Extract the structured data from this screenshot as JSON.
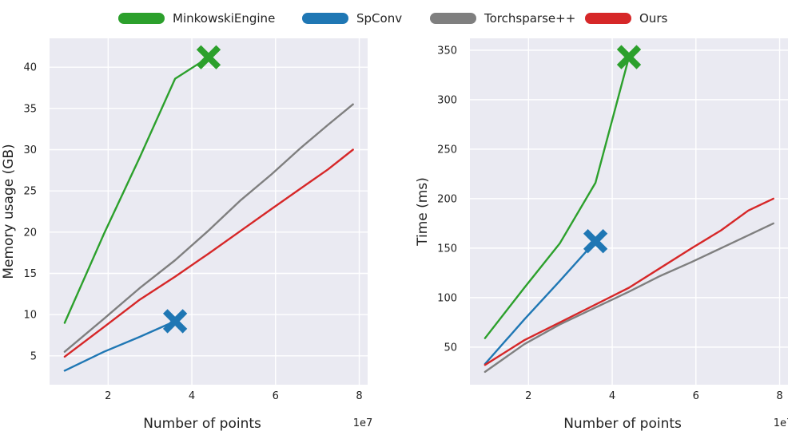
{
  "legend": [
    {
      "label": "MinkowskiEngine",
      "color": "#2ca02c"
    },
    {
      "label": "SpConv",
      "color": "#1f77b4"
    },
    {
      "label": "Torchsparse++",
      "color": "#7f7f7f"
    },
    {
      "label": "Ours",
      "color": "#d62728"
    }
  ],
  "chart_data": [
    {
      "type": "line",
      "title": "",
      "xlabel": "Number of points",
      "ylabel": "Memory usage (GB)",
      "x_offset_text": "1e7",
      "xlim": [
        0.6,
        8.2
      ],
      "ylim": [
        1.5,
        43.5
      ],
      "xticks": [
        2,
        4,
        6,
        8
      ],
      "yticks": [
        5,
        10,
        15,
        20,
        25,
        30,
        35,
        40
      ],
      "grid": true,
      "series": [
        {
          "name": "MinkowskiEngine",
          "color": "#2ca02c",
          "x": [
            0.96,
            1.9,
            2.75,
            3.6,
            4.4
          ],
          "y": [
            9,
            19.8,
            29,
            38.6,
            41.2
          ],
          "end_marker": "X"
        },
        {
          "name": "SpConv",
          "color": "#1f77b4",
          "x": [
            0.96,
            1.9,
            2.75,
            3.6
          ],
          "y": [
            3.2,
            5.5,
            7.3,
            9.2
          ],
          "end_marker": "X"
        },
        {
          "name": "Torchsparse++",
          "color": "#7f7f7f",
          "x": [
            0.96,
            1.9,
            2.75,
            3.6,
            4.4,
            5.15,
            5.9,
            6.6,
            7.25,
            7.85
          ],
          "y": [
            5.5,
            9.5,
            13.2,
            16.6,
            20.2,
            23.8,
            27,
            30.2,
            33,
            35.5
          ]
        },
        {
          "name": "Ours",
          "color": "#d62728",
          "x": [
            0.96,
            1.9,
            2.75,
            3.6,
            4.4,
            5.15,
            5.9,
            6.6,
            7.25,
            7.85
          ],
          "y": [
            4.9,
            8.5,
            11.8,
            14.6,
            17.4,
            20.1,
            22.8,
            25.3,
            27.6,
            30
          ]
        }
      ]
    },
    {
      "type": "line",
      "title": "",
      "xlabel": "Number of points",
      "ylabel": "Time (ms)",
      "x_offset_text": "1e7",
      "xlim": [
        0.6,
        8.2
      ],
      "ylim": [
        12,
        362
      ],
      "xticks": [
        2,
        4,
        6,
        8
      ],
      "yticks": [
        50,
        100,
        150,
        200,
        250,
        300,
        350
      ],
      "grid": true,
      "series": [
        {
          "name": "MinkowskiEngine",
          "color": "#2ca02c",
          "x": [
            0.96,
            1.9,
            2.75,
            3.6,
            4.4
          ],
          "y": [
            59,
            110,
            155,
            216,
            343
          ],
          "end_marker": "X"
        },
        {
          "name": "SpConv",
          "color": "#1f77b4",
          "x": [
            0.96,
            1.9,
            2.75,
            3.6
          ],
          "y": [
            33,
            78,
            117,
            157
          ],
          "end_marker": "X"
        },
        {
          "name": "Torchsparse++",
          "color": "#7f7f7f",
          "x": [
            0.96,
            1.9,
            2.75,
            3.6,
            4.4,
            5.15,
            5.9,
            6.6,
            7.25,
            7.85
          ],
          "y": [
            25,
            53,
            73,
            90,
            106,
            122,
            136,
            150,
            163,
            175
          ]
        },
        {
          "name": "Ours",
          "color": "#d62728",
          "x": [
            0.96,
            1.9,
            2.75,
            3.6,
            4.4,
            5.15,
            5.9,
            6.6,
            7.25,
            7.85
          ],
          "y": [
            32,
            57,
            75,
            93,
            110,
            130,
            150,
            168,
            188,
            200
          ]
        }
      ]
    }
  ]
}
